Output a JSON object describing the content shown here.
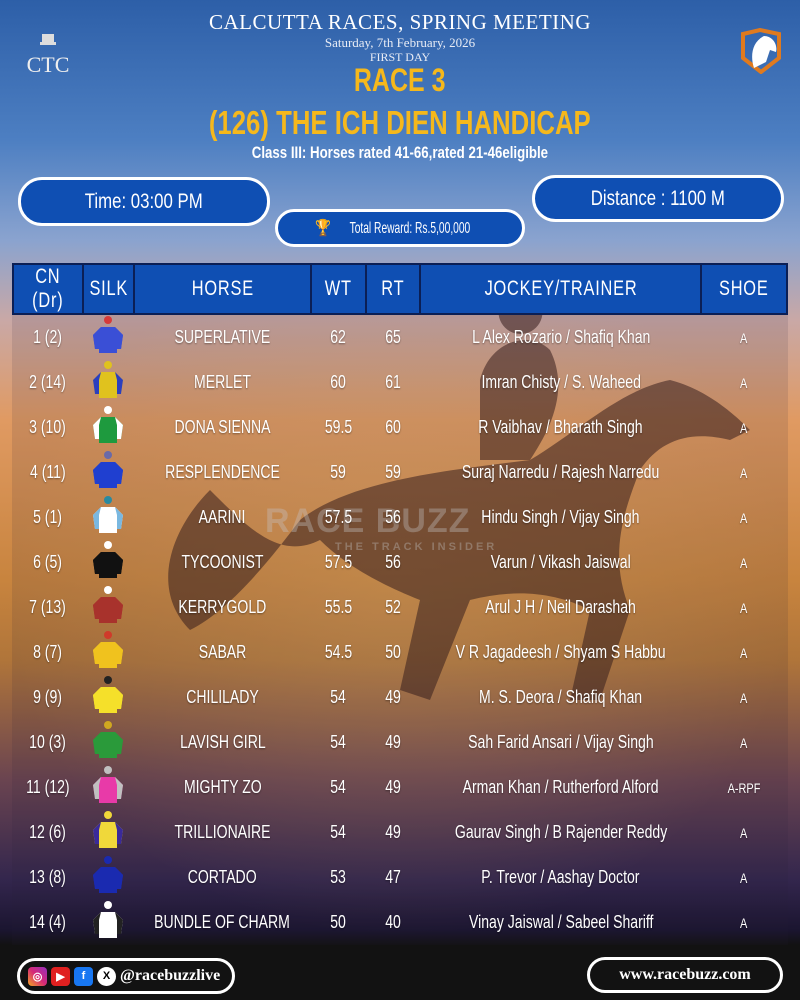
{
  "header": {
    "title": "CALCUTTA RACES, SPRING MEETING",
    "date": "Saturday, 7th February, 2026",
    "day": "FIRST DAY",
    "race": "RACE 3",
    "race_name": "(126) THE ICH DIEN HANDICAP",
    "class": "Class III: Horses rated 41-66,rated 21-46eligible",
    "logo_left": "CTC"
  },
  "info": {
    "time": "Time: 03:00 PM",
    "distance": "Distance : 1100 M",
    "reward": "Total Reward: Rs.5,00,000",
    "reward_icon": "trophy-icon"
  },
  "watermark": {
    "brand": "RACE BUZZ",
    "tagline": "THE TRACK INSIDER"
  },
  "table": {
    "headers": [
      "CN (Dr)",
      "SILK",
      "HORSE",
      "WT",
      "RT",
      "JOCKEY/TRAINER",
      "SHOE"
    ],
    "rows": [
      {
        "cn": "1 (2)",
        "horse": "SUPERLATIVE",
        "wt": "62",
        "rt": "65",
        "jt": "L Alex Rozario / Shafiq Khan",
        "shoe": "A",
        "silk": {
          "body": "#3a4fd6",
          "sleeve": "#3a4fd6",
          "cap": "#d63a3a"
        }
      },
      {
        "cn": "2 (14)",
        "horse": "MERLET",
        "wt": "60",
        "rt": "61",
        "jt": "Imran Chisty / S. Waheed",
        "shoe": "A",
        "silk": {
          "body": "#e0c21e",
          "sleeve": "#2b3fbf",
          "cap": "#e0c21e"
        }
      },
      {
        "cn": "3 (10)",
        "horse": "DONA SIENNA",
        "wt": "59.5",
        "rt": "60",
        "jt": "R Vaibhav / Bharath Singh",
        "shoe": "A",
        "silk": {
          "body": "#1e9a3e",
          "sleeve": "#ffffff",
          "cap": "#ffffff"
        }
      },
      {
        "cn": "4 (11)",
        "horse": "RESPLENDENCE",
        "wt": "59",
        "rt": "59",
        "jt": "Suraj Narredu / Rajesh Narredu",
        "shoe": "A",
        "silk": {
          "body": "#1f3fd0",
          "sleeve": "#1f3fd0",
          "cap": "#6a6aa8"
        }
      },
      {
        "cn": "5 (1)",
        "horse": "AARINI",
        "wt": "57.5",
        "rt": "56",
        "jt": "Hindu Singh / Vijay Singh",
        "shoe": "A",
        "silk": {
          "body": "#ffffff",
          "sleeve": "#7ab8e0",
          "cap": "#2a8aa0"
        }
      },
      {
        "cn": "6 (5)",
        "horse": "TYCOONIST",
        "wt": "57.5",
        "rt": "56",
        "jt": "Varun / Vikash Jaiswal",
        "shoe": "A",
        "silk": {
          "body": "#111111",
          "sleeve": "#111111",
          "cap": "#ffffff"
        }
      },
      {
        "cn": "7 (13)",
        "horse": "KERRYGOLD",
        "wt": "55.5",
        "rt": "52",
        "jt": "Arul J H / Neil Darashah",
        "shoe": "A",
        "silk": {
          "body": "#a8322c",
          "sleeve": "#a8322c",
          "cap": "#ffffff"
        }
      },
      {
        "cn": "8 (7)",
        "horse": "SABAR",
        "wt": "54.5",
        "rt": "50",
        "jt": "V R Jagadeesh / Shyam S Habbu",
        "shoe": "A",
        "silk": {
          "body": "#f0c21e",
          "sleeve": "#f0c21e",
          "cap": "#d03a2a"
        }
      },
      {
        "cn": "9 (9)",
        "horse": "CHILILADY",
        "wt": "54",
        "rt": "49",
        "jt": "M. S. Deora / Shafiq Khan",
        "shoe": "A",
        "silk": {
          "body": "#f5e02a",
          "sleeve": "#f5e02a",
          "cap": "#222222"
        }
      },
      {
        "cn": "10 (3)",
        "horse": "LAVISH GIRL",
        "wt": "54",
        "rt": "49",
        "jt": "Sah Farid Ansari / Vijay Singh",
        "shoe": "A",
        "silk": {
          "body": "#2a9a3a",
          "sleeve": "#2a9a3a",
          "cap": "#d0a820"
        }
      },
      {
        "cn": "11 (12)",
        "horse": "MIGHTY ZO",
        "wt": "54",
        "rt": "49",
        "jt": "Arman Khan / Rutherford Alford",
        "shoe": "A-RPF",
        "silk": {
          "body": "#e83aa8",
          "sleeve": "#c0c0c0",
          "cap": "#c0c0c0"
        }
      },
      {
        "cn": "12 (6)",
        "horse": "TRILLIONAIRE",
        "wt": "54",
        "rt": "49",
        "jt": "Gaurav Singh / B Rajender Reddy",
        "shoe": "A",
        "silk": {
          "body": "#f0d83a",
          "sleeve": "#3a2a9a",
          "cap": "#f0d83a"
        }
      },
      {
        "cn": "13 (8)",
        "horse": "CORTADO",
        "wt": "53",
        "rt": "47",
        "jt": "P. Trevor / Aashay Doctor",
        "shoe": "A",
        "silk": {
          "body": "#1a2ab0",
          "sleeve": "#1a2ab0",
          "cap": "#1a2ab0"
        }
      },
      {
        "cn": "14 (4)",
        "horse": "BUNDLE OF CHARM",
        "wt": "50",
        "rt": "40",
        "jt": "Vinay Jaiswal / Sabeel Shariff",
        "shoe": "A",
        "silk": {
          "body": "#ffffff",
          "sleeve": "#222222",
          "cap": "#ffffff"
        }
      }
    ]
  },
  "footer": {
    "handle": "@racebuzzlive",
    "website": "www.racebuzz.com",
    "social_icons": [
      "instagram-icon",
      "youtube-icon",
      "facebook-icon",
      "x-icon"
    ]
  },
  "colors": {
    "accent": "#0f4fb3",
    "title": "#f5b81c"
  }
}
